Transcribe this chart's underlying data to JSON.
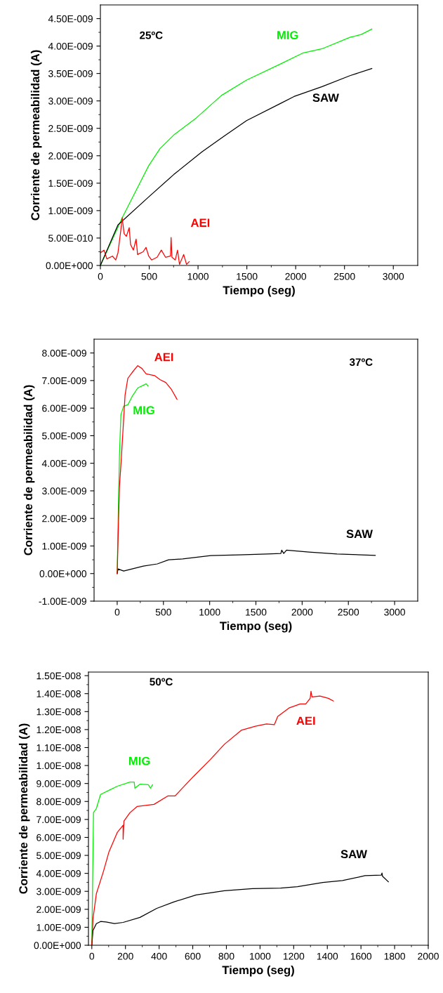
{
  "chart_data": [
    {
      "type": "line",
      "xlabel": "Tiempo (seg)",
      "ylabel": "Corriente de permeabilidad (A)",
      "annotations": [
        "25ºC"
      ],
      "xlim": [
        0,
        3250
      ],
      "xticks": [
        0,
        500,
        1000,
        1500,
        2000,
        2500,
        3000
      ],
      "ylim": [
        0,
        4.75e-09
      ],
      "yticks": [
        {
          "value": 0,
          "label": "0.00E+000"
        },
        {
          "value": 5e-10,
          "label": "5.00E-010"
        },
        {
          "value": 1e-09,
          "label": "1.00E-009"
        },
        {
          "value": 1.5e-09,
          "label": "1.50E-009"
        },
        {
          "value": 2e-09,
          "label": "2.00E-009"
        },
        {
          "value": 2.5e-09,
          "label": "2.50E-009"
        },
        {
          "value": 3e-09,
          "label": "3.00E-009"
        },
        {
          "value": 3.5e-09,
          "label": "3.50E-009"
        },
        {
          "value": 4e-09,
          "label": "4.00E-009"
        },
        {
          "value": 4.5e-09,
          "label": "4.50E-009"
        }
      ],
      "grid": false,
      "legend": false,
      "series": [
        {
          "name": "MIG",
          "color": "#00ee00",
          "x": [
            0,
            229,
            495,
            610,
            753,
            982,
            1240,
            1497,
            1840,
            2070,
            2270,
            2556,
            2671,
            2780
          ],
          "values": [
            0,
            8.9e-10,
            1.82e-09,
            2.13e-09,
            2.38e-09,
            2.69e-09,
            3.1e-09,
            3.38e-09,
            3.67e-09,
            3.87e-09,
            3.95e-09,
            4.16e-09,
            4.21e-09,
            4.31e-09
          ]
        },
        {
          "name": "SAW",
          "color": "#000000",
          "x": [
            0,
            180,
            495,
            753,
            1040,
            1268,
            1497,
            1840,
            1983,
            2270,
            2556,
            2780
          ],
          "values": [
            0,
            7.4e-10,
            1.25e-09,
            1.66e-09,
            2.07e-09,
            2.36e-09,
            2.64e-09,
            2.95e-09,
            3.08e-09,
            3.26e-09,
            3.46e-09,
            3.59e-09
          ]
        },
        {
          "name": "AEI",
          "color": "#ff0000",
          "x": [
            0,
            37,
            66,
            123,
            157,
            180,
            209,
            223,
            243,
            266,
            295,
            309,
            338,
            366,
            381,
            438,
            467,
            495,
            524,
            581,
            624,
            667,
            718,
            724,
            733,
            767,
            790,
            810,
            853,
            882,
            910
          ],
          "values": [
            2.3e-10,
            2.8e-10,
            1.2e-10,
            1.7e-10,
            1e-10,
            2.3e-10,
            6.4e-10,
            8.7e-10,
            5.8e-10,
            5.3e-10,
            6.9e-10,
            3.8e-10,
            2.8e-10,
            4.8e-10,
            2e-10,
            2.5e-10,
            3.3e-10,
            1.7e-10,
            1e-10,
            1.5e-10,
            2.8e-10,
            1.5e-10,
            1.7e-10,
            5.1e-10,
            1.5e-10,
            1e-10,
            2.8e-10,
            2e-11,
            2e-10,
            2e-11,
            7e-11
          ]
        }
      ]
    },
    {
      "type": "line",
      "xlabel": "Tiempo (seg)",
      "ylabel": "Corriente de permeabilidad (A)",
      "annotations": [
        "37ºC"
      ],
      "xlim": [
        -250,
        3250
      ],
      "xticks": [
        0,
        500,
        1000,
        1500,
        2000,
        2500,
        3000
      ],
      "ylim": [
        -1e-09,
        8.5e-09
      ],
      "yticks": [
        {
          "value": -1e-09,
          "label": "-1.00E-009"
        },
        {
          "value": 0,
          "label": "0.00E+000"
        },
        {
          "value": 1e-09,
          "label": "1.00E-009"
        },
        {
          "value": 2e-09,
          "label": "2.00E-009"
        },
        {
          "value": 3e-09,
          "label": "3.00E-009"
        },
        {
          "value": 4e-09,
          "label": "4.00E-009"
        },
        {
          "value": 5e-09,
          "label": "5.00E-009"
        },
        {
          "value": 6e-09,
          "label": "6.00E-009"
        },
        {
          "value": 7e-09,
          "label": "7.00E-009"
        },
        {
          "value": 8e-09,
          "label": "8.00E-009"
        }
      ],
      "grid": false,
      "legend": false,
      "series": [
        {
          "name": "MIG",
          "color": "#00ee00",
          "x": [
            0,
            9,
            24,
            40,
            70,
            115,
            161,
            222,
            282,
            313,
            334
          ],
          "values": [
            0,
            1.7e-09,
            4.24e-09,
            5.76e-09,
            6.07e-09,
            6.12e-09,
            6.42e-09,
            6.73e-09,
            6.83e-09,
            6.88e-09,
            6.8e-09
          ]
        },
        {
          "name": "SAW",
          "color": "#000000",
          "x": [
            0,
            9,
            70,
            161,
            282,
            434,
            556,
            708,
            1011,
            1315,
            1619,
            1770,
            1779,
            1801,
            1831,
            2074,
            2378,
            2791
          ],
          "values": [
            0,
            1.7e-10,
            9e-11,
            1.7e-10,
            2.7e-10,
            3.5e-10,
            5e-10,
            5.3e-10,
            6.5e-10,
            6.8e-10,
            7.1e-10,
            7.3e-10,
            8.5e-10,
            7.3e-10,
            8.5e-10,
            7.8e-10,
            7.1e-10,
            6.6e-10
          ]
        },
        {
          "name": "AEI",
          "color": "#ff0000",
          "x": [
            0,
            24,
            46,
            85,
            115,
            161,
            222,
            267,
            313,
            404,
            465,
            525,
            586,
            647
          ],
          "values": [
            0,
            3.12e-09,
            4.24e-09,
            6.47e-09,
            7.08e-09,
            7.29e-09,
            7.54e-09,
            7.44e-09,
            7.24e-09,
            7.18e-09,
            7.03e-09,
            6.93e-09,
            6.68e-09,
            6.32e-09
          ]
        }
      ]
    },
    {
      "type": "line",
      "xlabel": "Tiempo (seg)",
      "ylabel": "Corriente de permeabilidad (A)",
      "annotations": [
        "50ºC"
      ],
      "xlim": [
        -20,
        2000
      ],
      "xticks": [
        0,
        200,
        400,
        600,
        800,
        1000,
        1200,
        1400,
        1600,
        1800,
        2000
      ],
      "ylim": [
        0,
        1.52e-08
      ],
      "yticks": [
        {
          "value": 0,
          "label": "0.00E+000"
        },
        {
          "value": 1e-09,
          "label": "1.00E-009"
        },
        {
          "value": 2e-09,
          "label": "2.00E-009"
        },
        {
          "value": 3e-09,
          "label": "3.00E-009"
        },
        {
          "value": 4e-09,
          "label": "4.00E-009"
        },
        {
          "value": 5e-09,
          "label": "5.00E-009"
        },
        {
          "value": 6e-09,
          "label": "6.00E-009"
        },
        {
          "value": 7e-09,
          "label": "7.00E-009"
        },
        {
          "value": 8e-09,
          "label": "8.00E-009"
        },
        {
          "value": 9e-09,
          "label": "9.00E-009"
        },
        {
          "value": 1e-08,
          "label": "1.00E-008"
        },
        {
          "value": 1.1e-08,
          "label": "1.10E-008"
        },
        {
          "value": 1.2e-08,
          "label": "1.20E-008"
        },
        {
          "value": 1.3e-08,
          "label": "1.30E-008"
        },
        {
          "value": 1.4e-08,
          "label": "1.40E-008"
        },
        {
          "value": 1.5e-08,
          "label": "1.50E-008"
        }
      ],
      "grid": false,
      "legend": false,
      "series": [
        {
          "name": "MIG",
          "color": "#00ee00",
          "x": [
            0,
            10,
            27,
            52,
            102,
            152,
            227,
            252,
            256,
            286,
            336,
            349,
            361
          ],
          "values": [
            0,
            7.38e-09,
            7.61e-09,
            8.39e-09,
            8.62e-09,
            8.85e-09,
            9.08e-09,
            9.08e-09,
            8.74e-09,
            8.96e-09,
            8.93e-09,
            8.74e-09,
            8.93e-09
          ]
        },
        {
          "name": "SAW",
          "color": "#000000",
          "x": [
            0,
            7,
            27,
            52,
            85,
            135,
            186,
            286,
            386,
            487,
            620,
            788,
            955,
            1122,
            1222,
            1373,
            1490,
            1624,
            1721,
            1725,
            1728,
            1763
          ],
          "values": [
            0,
            8.2e-10,
            1.2e-09,
            1.32e-09,
            1.29e-09,
            1.21e-09,
            1.27e-09,
            1.55e-09,
            2.05e-09,
            2.41e-09,
            2.8e-09,
            3.03e-09,
            3.15e-09,
            3.18e-09,
            3.26e-09,
            3.49e-09,
            3.6e-09,
            3.87e-09,
            3.9e-09,
            4.02e-09,
            3.84e-09,
            3.53e-09
          ]
        },
        {
          "name": "AEI",
          "color": "#ff0000",
          "x": [
            0,
            7,
            27,
            69,
            102,
            152,
            186,
            186,
            191,
            227,
            269,
            370,
            453,
            495,
            604,
            704,
            788,
            888,
            972,
            1038,
            1085,
            1105,
            1172,
            1239,
            1272,
            1298,
            1303,
            1309,
            1356,
            1406,
            1436
          ],
          "values": [
            0,
            1.48e-09,
            2.87e-09,
            4.11e-09,
            5.2e-09,
            6.29e-09,
            6.68e-09,
            5.9e-09,
            6.91e-09,
            7.38e-09,
            7.72e-09,
            7.84e-09,
            8.31e-09,
            8.31e-09,
            9.39e-09,
            1.033e-08,
            1.118e-08,
            1.196e-08,
            1.219e-08,
            1.231e-08,
            1.227e-08,
            1.273e-08,
            1.32e-08,
            1.343e-08,
            1.343e-08,
            1.374e-08,
            1.413e-08,
            1.382e-08,
            1.387e-08,
            1.374e-08,
            1.359e-08
          ]
        }
      ]
    }
  ]
}
